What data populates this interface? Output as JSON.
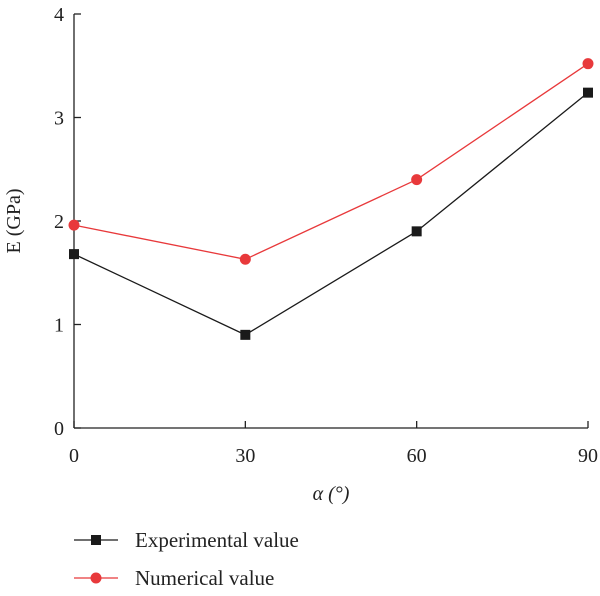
{
  "chart_data": {
    "type": "line",
    "x": [
      0,
      30,
      60,
      90
    ],
    "xlabel": "α (°)",
    "ylabel": "E (GPa)",
    "xlim": [
      0,
      90
    ],
    "ylim": [
      0,
      4
    ],
    "xticks": [
      "0",
      "30",
      "60",
      "90"
    ],
    "yticks": [
      "0",
      "1",
      "2",
      "3",
      "4"
    ],
    "grid": false,
    "legend_position": "bottom-left",
    "series": [
      {
        "name": "Experimental value",
        "values": [
          1.68,
          0.9,
          1.9,
          3.24
        ],
        "color": "#1a1a1a",
        "marker": "square"
      },
      {
        "name": "Numerical value",
        "values": [
          1.96,
          1.63,
          2.4,
          3.52
        ],
        "color": "#e8393b",
        "marker": "circle"
      }
    ]
  }
}
